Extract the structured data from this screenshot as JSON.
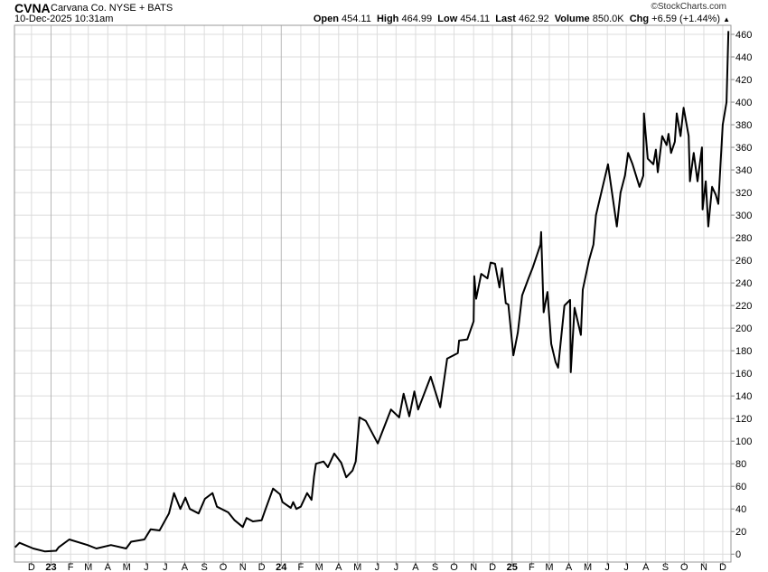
{
  "header": {
    "symbol": "CVNA",
    "name": "Carvana Co. NYSE + BATS",
    "datetime": "10-Dec-2025 10:31am",
    "watermark": "©StockCharts.com",
    "quote": {
      "open_label": "Open",
      "open": "454.11",
      "high_label": "High",
      "high": "464.99",
      "low_label": "Low",
      "low": "454.11",
      "last_label": "Last",
      "last": "462.92",
      "volume_label": "Volume",
      "volume": "850.0K",
      "chg_label": "Chg",
      "chg": "+6.59 (+1.44%)",
      "direction_icon": "triangle-up-icon"
    }
  },
  "chart_data": {
    "type": "line",
    "title": "",
    "xlabel": "",
    "ylabel": "",
    "xlim": [
      "2022-11-04",
      "2025-12-14"
    ],
    "ylim": [
      -7,
      468
    ],
    "grid": true,
    "y_axis_side": "right",
    "line_color": "#000000",
    "grid_color": "#dcdcdc",
    "y_ticks": [
      0,
      20,
      40,
      60,
      80,
      100,
      120,
      140,
      160,
      180,
      200,
      220,
      240,
      260,
      280,
      300,
      320,
      340,
      360,
      380,
      400,
      420,
      440,
      460
    ],
    "x_ticks": [
      {
        "date": "2022-12-01",
        "label": "D"
      },
      {
        "date": "2023-01-01",
        "label": "23",
        "year": true
      },
      {
        "date": "2023-02-01",
        "label": "F"
      },
      {
        "date": "2023-03-01",
        "label": "M"
      },
      {
        "date": "2023-04-01",
        "label": "A"
      },
      {
        "date": "2023-05-01",
        "label": "M"
      },
      {
        "date": "2023-06-01",
        "label": "J"
      },
      {
        "date": "2023-07-01",
        "label": "J"
      },
      {
        "date": "2023-08-01",
        "label": "A"
      },
      {
        "date": "2023-09-01",
        "label": "S"
      },
      {
        "date": "2023-10-01",
        "label": "O"
      },
      {
        "date": "2023-11-01",
        "label": "N"
      },
      {
        "date": "2023-12-01",
        "label": "D"
      },
      {
        "date": "2024-01-01",
        "label": "24",
        "year": true
      },
      {
        "date": "2024-02-01",
        "label": "F"
      },
      {
        "date": "2024-03-01",
        "label": "M"
      },
      {
        "date": "2024-04-01",
        "label": "A"
      },
      {
        "date": "2024-05-01",
        "label": "M"
      },
      {
        "date": "2024-06-01",
        "label": "J"
      },
      {
        "date": "2024-07-01",
        "label": "J"
      },
      {
        "date": "2024-08-01",
        "label": "A"
      },
      {
        "date": "2024-09-01",
        "label": "S"
      },
      {
        "date": "2024-10-01",
        "label": "O"
      },
      {
        "date": "2024-11-01",
        "label": "N"
      },
      {
        "date": "2024-12-01",
        "label": "D"
      },
      {
        "date": "2025-01-01",
        "label": "25",
        "year": true
      },
      {
        "date": "2025-02-01",
        "label": "F"
      },
      {
        "date": "2025-03-01",
        "label": "M"
      },
      {
        "date": "2025-04-01",
        "label": "A"
      },
      {
        "date": "2025-05-01",
        "label": "M"
      },
      {
        "date": "2025-06-01",
        "label": "J"
      },
      {
        "date": "2025-07-01",
        "label": "J"
      },
      {
        "date": "2025-08-01",
        "label": "A"
      },
      {
        "date": "2025-09-01",
        "label": "S"
      },
      {
        "date": "2025-10-01",
        "label": "O"
      },
      {
        "date": "2025-11-01",
        "label": "N"
      },
      {
        "date": "2025-12-01",
        "label": "D"
      }
    ],
    "series": [
      {
        "points": [
          [
            "2022-11-05",
            6
          ],
          [
            "2022-11-12",
            10
          ],
          [
            "2022-12-04",
            5
          ],
          [
            "2022-12-22",
            2.4
          ],
          [
            "2023-01-09",
            3
          ],
          [
            "2023-01-13",
            6
          ],
          [
            "2023-01-30",
            13
          ],
          [
            "2023-02-28",
            8
          ],
          [
            "2023-03-14",
            5
          ],
          [
            "2023-04-06",
            8
          ],
          [
            "2023-04-30",
            5
          ],
          [
            "2023-05-08",
            11
          ],
          [
            "2023-05-29",
            13
          ],
          [
            "2023-06-08",
            22
          ],
          [
            "2023-06-22",
            21
          ],
          [
            "2023-07-07",
            36
          ],
          [
            "2023-07-15",
            54
          ],
          [
            "2023-07-25",
            40
          ],
          [
            "2023-08-02",
            50
          ],
          [
            "2023-08-09",
            40
          ],
          [
            "2023-08-23",
            36
          ],
          [
            "2023-09-02",
            49
          ],
          [
            "2023-09-14",
            54
          ],
          [
            "2023-09-21",
            42
          ],
          [
            "2023-10-09",
            37
          ],
          [
            "2023-10-19",
            30
          ],
          [
            "2023-11-01",
            24
          ],
          [
            "2023-11-07",
            32
          ],
          [
            "2023-11-17",
            29
          ],
          [
            "2023-12-01",
            30
          ],
          [
            "2023-12-06",
            38
          ],
          [
            "2023-12-19",
            58
          ],
          [
            "2023-12-30",
            53
          ],
          [
            "2024-01-03",
            46
          ],
          [
            "2024-01-16",
            41
          ],
          [
            "2024-01-20",
            46
          ],
          [
            "2024-01-25",
            40
          ],
          [
            "2024-02-01",
            42
          ],
          [
            "2024-02-11",
            54
          ],
          [
            "2024-02-18",
            48
          ],
          [
            "2024-02-22",
            69
          ],
          [
            "2024-02-25",
            80
          ],
          [
            "2024-03-08",
            82
          ],
          [
            "2024-03-15",
            77
          ],
          [
            "2024-03-25",
            89
          ],
          [
            "2024-04-05",
            81
          ],
          [
            "2024-04-13",
            68
          ],
          [
            "2024-04-23",
            74
          ],
          [
            "2024-04-28",
            82
          ],
          [
            "2024-05-04",
            121
          ],
          [
            "2024-05-14",
            118
          ],
          [
            "2024-06-02",
            98
          ],
          [
            "2024-06-23",
            128
          ],
          [
            "2024-07-06",
            121
          ],
          [
            "2024-07-13",
            142
          ],
          [
            "2024-07-22",
            122
          ],
          [
            "2024-07-30",
            144
          ],
          [
            "2024-08-05",
            128
          ],
          [
            "2024-08-25",
            157
          ],
          [
            "2024-09-09",
            130
          ],
          [
            "2024-09-20",
            173
          ],
          [
            "2024-10-07",
            178
          ],
          [
            "2024-10-09",
            189
          ],
          [
            "2024-10-22",
            190
          ],
          [
            "2024-11-01",
            206
          ],
          [
            "2024-11-02",
            246
          ],
          [
            "2024-11-05",
            226
          ],
          [
            "2024-11-13",
            248
          ],
          [
            "2024-11-23",
            244
          ],
          [
            "2024-11-28",
            258
          ],
          [
            "2024-12-05",
            257
          ],
          [
            "2024-12-12",
            236
          ],
          [
            "2024-12-16",
            253
          ],
          [
            "2024-12-22",
            222
          ],
          [
            "2024-12-26",
            221
          ],
          [
            "2025-01-03",
            176
          ],
          [
            "2025-01-10",
            196
          ],
          [
            "2025-01-17",
            229
          ],
          [
            "2025-01-27",
            244
          ],
          [
            "2025-02-03",
            254
          ],
          [
            "2025-02-15",
            274
          ],
          [
            "2025-02-16",
            285
          ],
          [
            "2025-02-20",
            214
          ],
          [
            "2025-02-26",
            232
          ],
          [
            "2025-03-04",
            186
          ],
          [
            "2025-03-11",
            170
          ],
          [
            "2025-03-15",
            165
          ],
          [
            "2025-03-25",
            220
          ],
          [
            "2025-04-03",
            225
          ],
          [
            "2025-04-04",
            161
          ],
          [
            "2025-04-10",
            218
          ],
          [
            "2025-04-20",
            194
          ],
          [
            "2025-04-23",
            234
          ],
          [
            "2025-05-03",
            260
          ],
          [
            "2025-05-10",
            274
          ],
          [
            "2025-05-14",
            300
          ],
          [
            "2025-06-02",
            345
          ],
          [
            "2025-06-16",
            290
          ],
          [
            "2025-06-22",
            320
          ],
          [
            "2025-06-29",
            335
          ],
          [
            "2025-07-04",
            355
          ],
          [
            "2025-07-11",
            345
          ],
          [
            "2025-07-22",
            325
          ],
          [
            "2025-07-28",
            335
          ],
          [
            "2025-07-29",
            390
          ],
          [
            "2025-08-04",
            350
          ],
          [
            "2025-08-13",
            345
          ],
          [
            "2025-08-17",
            358
          ],
          [
            "2025-08-20",
            338
          ],
          [
            "2025-08-27",
            370
          ],
          [
            "2025-09-03",
            362
          ],
          [
            "2025-09-06",
            372
          ],
          [
            "2025-09-10",
            355
          ],
          [
            "2025-09-16",
            365
          ],
          [
            "2025-09-19",
            390
          ],
          [
            "2025-09-25",
            370
          ],
          [
            "2025-09-30",
            395
          ],
          [
            "2025-10-08",
            370
          ],
          [
            "2025-10-10",
            330
          ],
          [
            "2025-10-16",
            355
          ],
          [
            "2025-10-22",
            330
          ],
          [
            "2025-10-29",
            360
          ],
          [
            "2025-10-30",
            305
          ],
          [
            "2025-11-04",
            330
          ],
          [
            "2025-11-08",
            290
          ],
          [
            "2025-11-14",
            325
          ],
          [
            "2025-11-20",
            318
          ],
          [
            "2025-11-24",
            310
          ],
          [
            "2025-11-28",
            350
          ],
          [
            "2025-12-01",
            380
          ],
          [
            "2025-12-07",
            400
          ],
          [
            "2025-12-10",
            462.92
          ]
        ]
      }
    ]
  }
}
